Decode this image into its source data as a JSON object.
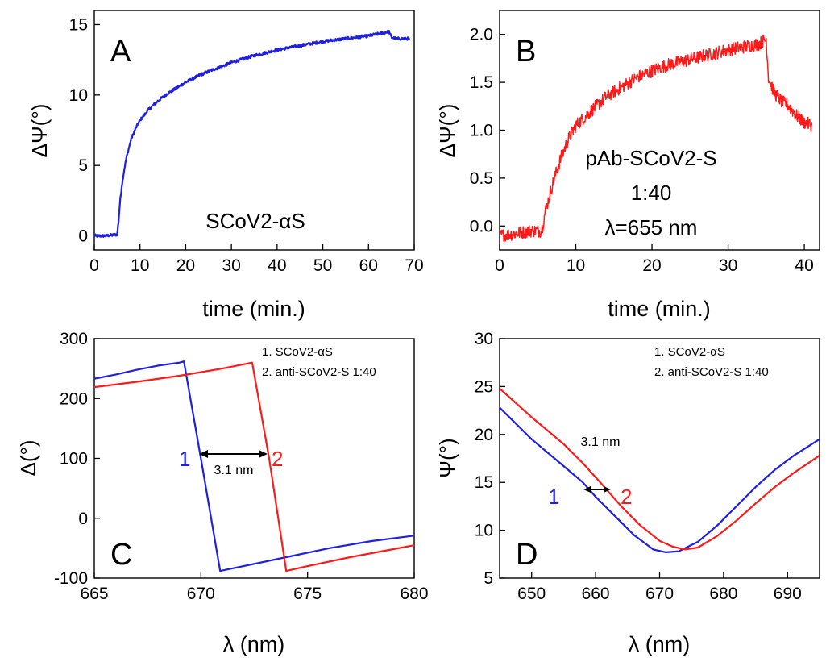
{
  "chart_data": [
    {
      "panel": "A",
      "type": "line",
      "xlabel": "time (min.)",
      "ylabel": "ΔΨ(°)",
      "xlim": [
        0,
        70
      ],
      "ylim": [
        -1,
        16
      ],
      "xticks": [
        0,
        10,
        20,
        30,
        40,
        50,
        60,
        70
      ],
      "yticks": [
        0,
        5,
        10,
        15
      ],
      "color": "#1f1fe0",
      "annotations": [
        "SCoV2-αS"
      ],
      "series": [
        {
          "x": [
            0,
            2,
            4,
            5,
            5.3,
            5.6,
            6,
            6.5,
            7,
            8,
            9,
            10,
            12,
            14,
            16,
            18,
            20,
            23,
            26,
            30,
            35,
            40,
            45,
            50,
            55,
            60,
            63,
            64.5,
            65,
            66,
            68,
            69
          ],
          "values": [
            0,
            0,
            0.05,
            0.1,
            1.0,
            2.3,
            3.5,
            4.6,
            5.5,
            6.8,
            7.6,
            8.2,
            9.0,
            9.6,
            10.1,
            10.5,
            10.9,
            11.4,
            11.8,
            12.3,
            12.8,
            13.2,
            13.5,
            13.8,
            14.0,
            14.2,
            14.4,
            14.5,
            14.1,
            14.0,
            14.0,
            14.0
          ]
        }
      ]
    },
    {
      "panel": "B",
      "type": "line",
      "xlabel": "time (min.)",
      "ylabel": "ΔΨ(°)",
      "xlim": [
        0,
        42
      ],
      "ylim": [
        -0.25,
        2.25
      ],
      "xticks": [
        0,
        10,
        20,
        30,
        40
      ],
      "yticks": [
        0.0,
        0.5,
        1.0,
        1.5,
        2.0
      ],
      "color": "#ff1a1a",
      "annotations": [
        "pAb-SCoV2-S",
        "1:40",
        "λ=655 nm"
      ],
      "series": [
        {
          "x": [
            0,
            2,
            4,
            5.5,
            6,
            6.5,
            7,
            8,
            9,
            10,
            12,
            14,
            16,
            18,
            20,
            22,
            24,
            26,
            28,
            30,
            32,
            34,
            35,
            35.3,
            36,
            37,
            38,
            39,
            40,
            41
          ],
          "values": [
            -0.1,
            -0.08,
            -0.05,
            -0.05,
            0.15,
            0.3,
            0.45,
            0.7,
            0.9,
            1.05,
            1.2,
            1.35,
            1.45,
            1.55,
            1.62,
            1.68,
            1.72,
            1.76,
            1.8,
            1.84,
            1.87,
            1.9,
            1.95,
            1.55,
            1.4,
            1.3,
            1.25,
            1.15,
            1.08,
            1.05
          ]
        }
      ]
    },
    {
      "panel": "C",
      "type": "line",
      "xlabel": "λ (nm)",
      "ylabel": "Δ(°)",
      "xlim": [
        665,
        680
      ],
      "ylim": [
        -100,
        300
      ],
      "xticks": [
        665,
        670,
        675,
        680
      ],
      "yticks": [
        -100,
        0,
        100,
        200,
        300
      ],
      "legend": [
        "1. SCoV2-αS",
        "2. anti-SCoV2-S 1:40"
      ],
      "curve_labels": [
        "1",
        "2"
      ],
      "gap_label": "3.1 nm",
      "series": [
        {
          "name": "1. SCoV2-αS",
          "color": "#1f1fe0",
          "x": [
            665,
            666,
            667,
            668,
            669,
            669.2,
            670,
            670.9,
            672,
            674,
            676,
            678,
            680
          ],
          "values": [
            233,
            240,
            248,
            255,
            260,
            262,
            100,
            -88,
            -80,
            -65,
            -50,
            -38,
            -29
          ]
        },
        {
          "name": "2. anti-SCoV2-S 1:40",
          "color": "#ff1a1a",
          "x": [
            665,
            667,
            669,
            671,
            672.4,
            673.2,
            674,
            675,
            677,
            680
          ],
          "values": [
            219,
            228,
            238,
            250,
            260,
            100,
            -88,
            -80,
            -65,
            -45
          ]
        }
      ]
    },
    {
      "panel": "D",
      "type": "line",
      "xlabel": "λ (nm)",
      "ylabel": "Ψ(°)",
      "xlim": [
        645,
        695
      ],
      "ylim": [
        5,
        30
      ],
      "xticks": [
        650,
        660,
        670,
        680,
        690
      ],
      "yticks": [
        5,
        10,
        15,
        20,
        25,
        30
      ],
      "legend": [
        "1. SCoV2-αS",
        "2. anti-SCoV2-S 1:40"
      ],
      "curve_labels": [
        "1",
        "2"
      ],
      "gap_label": "3.1 nm",
      "series": [
        {
          "name": "1. SCoV2-αS",
          "color": "#1f1fe0",
          "x": [
            645,
            650,
            655,
            658,
            660,
            663,
            666,
            669,
            671,
            673,
            676,
            679,
            682,
            685,
            688,
            691,
            695
          ],
          "values": [
            22.8,
            19.5,
            16.7,
            15.0,
            13.5,
            11.5,
            9.5,
            8.0,
            7.7,
            7.8,
            8.8,
            10.5,
            12.5,
            14.5,
            16.3,
            17.8,
            19.5
          ]
        },
        {
          "name": "2. anti-SCoV2-S 1:40",
          "color": "#ff1a1a",
          "x": [
            645,
            650,
            655,
            658,
            661,
            664,
            667,
            670,
            672,
            674,
            676,
            679,
            682,
            685,
            688,
            691,
            695
          ],
          "values": [
            24.8,
            21.8,
            19.0,
            17.0,
            14.8,
            12.5,
            10.5,
            8.9,
            8.3,
            8.0,
            8.2,
            9.4,
            11.0,
            12.8,
            14.5,
            16.0,
            17.8
          ]
        }
      ]
    }
  ]
}
